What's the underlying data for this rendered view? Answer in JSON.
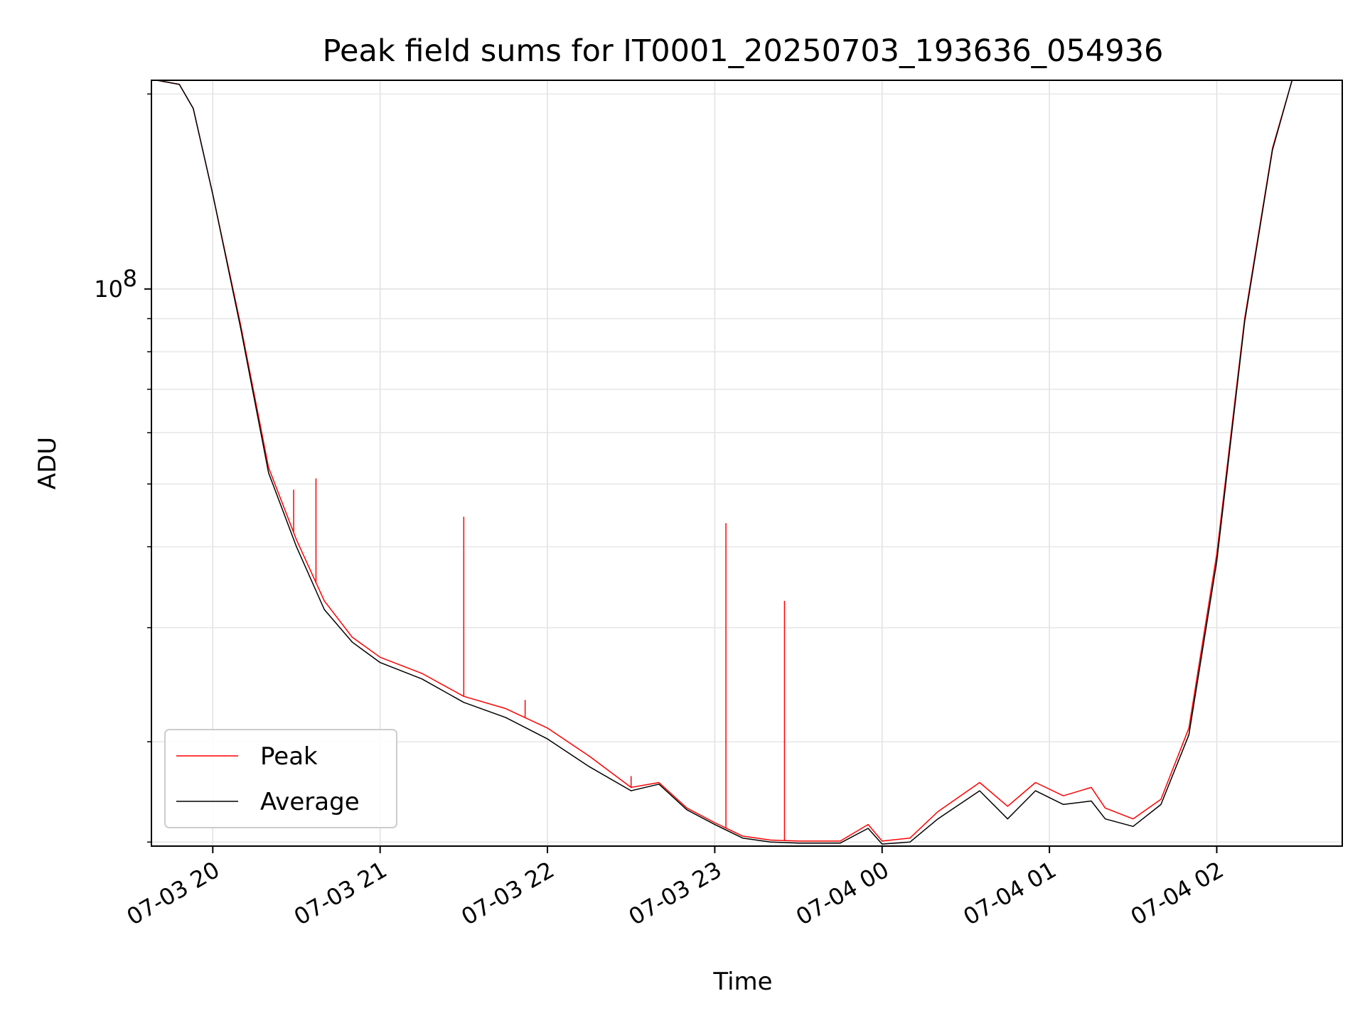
{
  "chart_data": {
    "type": "line",
    "title": "Peak field sums for IT0001_20250703_193636_054936",
    "xlabel": "Time",
    "ylabel": "ADU",
    "yscale": "log",
    "xlim": [
      "2025-07-03 19:38",
      "2025-07-04 02:45"
    ],
    "ylim": [
      13800000,
      210000000
    ],
    "grid": true,
    "legend_position": "lower-left",
    "x_ticks": [
      {
        "label": "07-03 20",
        "value": "2025-07-03 20:00"
      },
      {
        "label": "07-03 21",
        "value": "2025-07-03 21:00"
      },
      {
        "label": "07-03 22",
        "value": "2025-07-03 22:00"
      },
      {
        "label": "07-03 23",
        "value": "2025-07-03 23:00"
      },
      {
        "label": "07-04 00",
        "value": "2025-07-04 00:00"
      },
      {
        "label": "07-04 01",
        "value": "2025-07-04 01:00"
      },
      {
        "label": "07-04 02",
        "value": "2025-07-04 02:00"
      }
    ],
    "y_ticks_major": [
      {
        "label_base": "10",
        "label_exp": "8",
        "value": 100000000
      }
    ],
    "y_ticks_minor": [
      14000000,
      20000000,
      30000000,
      40000000,
      50000000,
      60000000,
      70000000,
      80000000,
      90000000,
      200000000
    ],
    "x": [
      "2025-07-03 19:40",
      "2025-07-03 19:48",
      "2025-07-03 19:53",
      "2025-07-03 20:00",
      "2025-07-03 20:10",
      "2025-07-03 20:20",
      "2025-07-03 20:30",
      "2025-07-03 20:40",
      "2025-07-03 20:50",
      "2025-07-03 21:00",
      "2025-07-03 21:15",
      "2025-07-03 21:30",
      "2025-07-03 21:45",
      "2025-07-03 22:00",
      "2025-07-03 22:15",
      "2025-07-03 22:30",
      "2025-07-03 22:40",
      "2025-07-03 22:50",
      "2025-07-03 23:00",
      "2025-07-03 23:10",
      "2025-07-03 23:20",
      "2025-07-03 23:30",
      "2025-07-03 23:45",
      "2025-07-03 23:55",
      "2025-07-04 00:00",
      "2025-07-04 00:10",
      "2025-07-04 00:20",
      "2025-07-04 00:35",
      "2025-07-04 00:45",
      "2025-07-04 00:55",
      "2025-07-04 01:05",
      "2025-07-04 01:15",
      "2025-07-04 01:20",
      "2025-07-04 01:30",
      "2025-07-04 01:40",
      "2025-07-04 01:50",
      "2025-07-04 02:00",
      "2025-07-04 02:10",
      "2025-07-04 02:20",
      "2025-07-04 02:27"
    ],
    "series": [
      {
        "name": "Peak",
        "color": "#ff0000",
        "values": [
          210000000,
          207000000,
          190000000,
          140000000,
          88000000,
          53000000,
          41000000,
          33000000,
          29000000,
          27000000,
          25500000,
          23500000,
          22500000,
          21000000,
          19000000,
          17000000,
          17300000,
          15800000,
          15000000,
          14300000,
          14100000,
          14050000,
          14050000,
          14900000,
          14050000,
          14200000,
          15600000,
          17300000,
          15900000,
          17300000,
          16500000,
          17000000,
          15800000,
          15200000,
          16300000,
          21000000,
          39000000,
          90000000,
          165000000,
          210000000
        ]
      },
      {
        "name": "Average",
        "color": "#000000",
        "values": [
          210000000,
          207000000,
          190000000,
          140000000,
          87000000,
          52000000,
          40000000,
          32000000,
          28500000,
          26500000,
          25000000,
          23000000,
          21800000,
          20200000,
          18300000,
          16800000,
          17200000,
          15700000,
          14900000,
          14200000,
          14000000,
          13950000,
          13950000,
          14700000,
          13900000,
          14000000,
          15200000,
          16800000,
          15200000,
          16800000,
          16000000,
          16200000,
          15200000,
          14800000,
          16000000,
          20500000,
          38000000,
          89000000,
          164000000,
          210000000
        ]
      }
    ],
    "spikes": [
      {
        "series": "Peak",
        "x": "2025-07-03 20:29",
        "value": 49000000
      },
      {
        "series": "Peak",
        "x": "2025-07-03 20:37",
        "value": 51000000
      },
      {
        "series": "Peak",
        "x": "2025-07-03 21:30",
        "value": 44500000
      },
      {
        "series": "Peak",
        "x": "2025-07-03 21:52",
        "value": 23200000
      },
      {
        "series": "Peak",
        "x": "2025-07-03 22:30",
        "value": 17700000
      },
      {
        "series": "Peak",
        "x": "2025-07-03 23:04",
        "value": 43500000
      },
      {
        "series": "Peak",
        "x": "2025-07-03 23:25",
        "value": 33000000
      }
    ]
  }
}
